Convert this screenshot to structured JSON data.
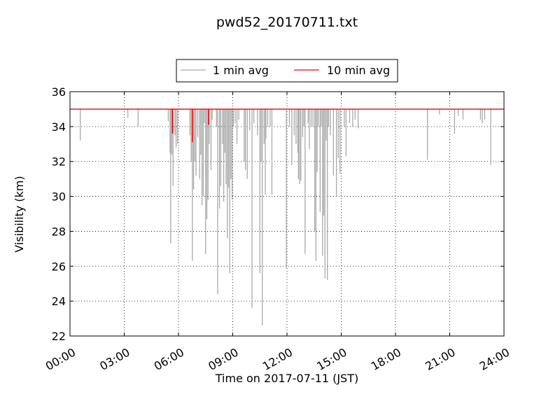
{
  "chart_data": {
    "type": "line",
    "title": "pwd52_20170711.txt",
    "xlabel": "Time on 2017-07-11 (JST)",
    "ylabel": "Visibility (km)",
    "xlim": [
      "00:00",
      "24:00"
    ],
    "ylim": [
      22,
      36
    ],
    "x_ticks": [
      "00:00",
      "03:00",
      "06:00",
      "09:00",
      "12:00",
      "15:00",
      "18:00",
      "21:00",
      "24:00"
    ],
    "y_ticks": [
      "22",
      "24",
      "26",
      "28",
      "30",
      "32",
      "34",
      "36"
    ],
    "grid": true,
    "legend_position": "top-center",
    "baseline_value": 35,
    "series": [
      {
        "name": "1 min avg",
        "color": "#a9a9a9",
        "dips": [
          [
            "00:34",
            33.2
          ],
          [
            "03:12",
            34.5
          ],
          [
            "03:46",
            34.0
          ],
          [
            "05:26",
            34.3
          ],
          [
            "05:32",
            32.5
          ],
          [
            "05:34",
            27.3
          ],
          [
            "05:38",
            32.4
          ],
          [
            "05:42",
            30.6
          ],
          [
            "05:48",
            33.5
          ],
          [
            "05:52",
            32.8
          ],
          [
            "05:57",
            33.0
          ],
          [
            "06:38",
            33.5
          ],
          [
            "06:42",
            32.0
          ],
          [
            "06:46",
            26.3
          ],
          [
            "06:50",
            30.4
          ],
          [
            "06:54",
            32.0
          ],
          [
            "06:58",
            31.2
          ],
          [
            "07:04",
            33.4
          ],
          [
            "07:10",
            31.0
          ],
          [
            "07:14",
            32.4
          ],
          [
            "07:18",
            29.5
          ],
          [
            "07:22",
            30.0
          ],
          [
            "07:26",
            34.2
          ],
          [
            "07:30",
            26.7
          ],
          [
            "07:34",
            28.7
          ],
          [
            "07:38",
            29.8
          ],
          [
            "07:42",
            33.0
          ],
          [
            "07:48",
            31.5
          ],
          [
            "07:52",
            34.4
          ],
          [
            "08:06",
            34.0
          ],
          [
            "08:10",
            24.4
          ],
          [
            "08:16",
            29.3
          ],
          [
            "08:20",
            30.6
          ],
          [
            "08:26",
            33.0
          ],
          [
            "08:30",
            29.7
          ],
          [
            "08:34",
            32.5
          ],
          [
            "08:38",
            30.7
          ],
          [
            "08:42",
            27.6
          ],
          [
            "08:46",
            30.5
          ],
          [
            "08:50",
            25.6
          ],
          [
            "08:54",
            31.0
          ],
          [
            "08:58",
            29.8
          ],
          [
            "09:02",
            34.0
          ],
          [
            "09:08",
            34.2
          ],
          [
            "09:14",
            33.0
          ],
          [
            "09:20",
            34.4
          ],
          [
            "09:38",
            32.0
          ],
          [
            "09:42",
            31.5
          ],
          [
            "09:48",
            31.0
          ],
          [
            "09:56",
            33.8
          ],
          [
            "10:04",
            23.6
          ],
          [
            "10:10",
            34.2
          ],
          [
            "10:22",
            33.5
          ],
          [
            "10:30",
            25.6
          ],
          [
            "10:34",
            32.0
          ],
          [
            "10:38",
            22.6
          ],
          [
            "10:44",
            33.0
          ],
          [
            "10:48",
            30.1
          ],
          [
            "10:50",
            33.3
          ],
          [
            "10:56",
            34.0
          ],
          [
            "11:04",
            34.0
          ],
          [
            "11:10",
            30.1
          ],
          [
            "11:58",
            25.9
          ],
          [
            "12:08",
            34.0
          ],
          [
            "12:16",
            31.8
          ],
          [
            "12:24",
            33.5
          ],
          [
            "12:30",
            33.0
          ],
          [
            "12:36",
            32.5
          ],
          [
            "12:38",
            31.0
          ],
          [
            "12:42",
            30.7
          ],
          [
            "12:46",
            30.9
          ],
          [
            "12:52",
            33.4
          ],
          [
            "12:56",
            34.0
          ],
          [
            "13:00",
            26.7
          ],
          [
            "13:10",
            34.2
          ],
          [
            "13:14",
            32.7
          ],
          [
            "13:20",
            34.0
          ],
          [
            "13:26",
            34.0
          ],
          [
            "13:32",
            28.0
          ],
          [
            "13:36",
            26.3
          ],
          [
            "13:40",
            31.4
          ],
          [
            "13:44",
            34.0
          ],
          [
            "13:50",
            29.1
          ],
          [
            "13:54",
            34.0
          ],
          [
            "13:58",
            26.6
          ],
          [
            "14:02",
            28.9
          ],
          [
            "14:06",
            25.3
          ],
          [
            "14:10",
            33.2
          ],
          [
            "14:14",
            25.2
          ],
          [
            "14:18",
            34.0
          ],
          [
            "14:24",
            33.5
          ],
          [
            "14:34",
            31.2
          ],
          [
            "14:44",
            30.0
          ],
          [
            "14:50",
            32.2
          ],
          [
            "14:56",
            31.3
          ],
          [
            "15:10",
            34.0
          ],
          [
            "15:16",
            32.3
          ],
          [
            "15:28",
            34.2
          ],
          [
            "15:38",
            34.0
          ],
          [
            "15:46",
            34.4
          ],
          [
            "15:56",
            33.9
          ],
          [
            "19:46",
            32.1
          ],
          [
            "20:26",
            34.7
          ],
          [
            "21:16",
            33.6
          ],
          [
            "21:28",
            34.6
          ],
          [
            "21:44",
            34.4
          ],
          [
            "22:42",
            34.4
          ],
          [
            "22:48",
            34.2
          ],
          [
            "22:56",
            34.4
          ],
          [
            "23:16",
            31.8
          ]
        ]
      },
      {
        "name": "10 min avg",
        "color": "#ff0000",
        "dips": [
          [
            "05:40",
            33.6
          ],
          [
            "06:46",
            33.1
          ],
          [
            "07:40",
            34.1
          ]
        ]
      }
    ]
  }
}
